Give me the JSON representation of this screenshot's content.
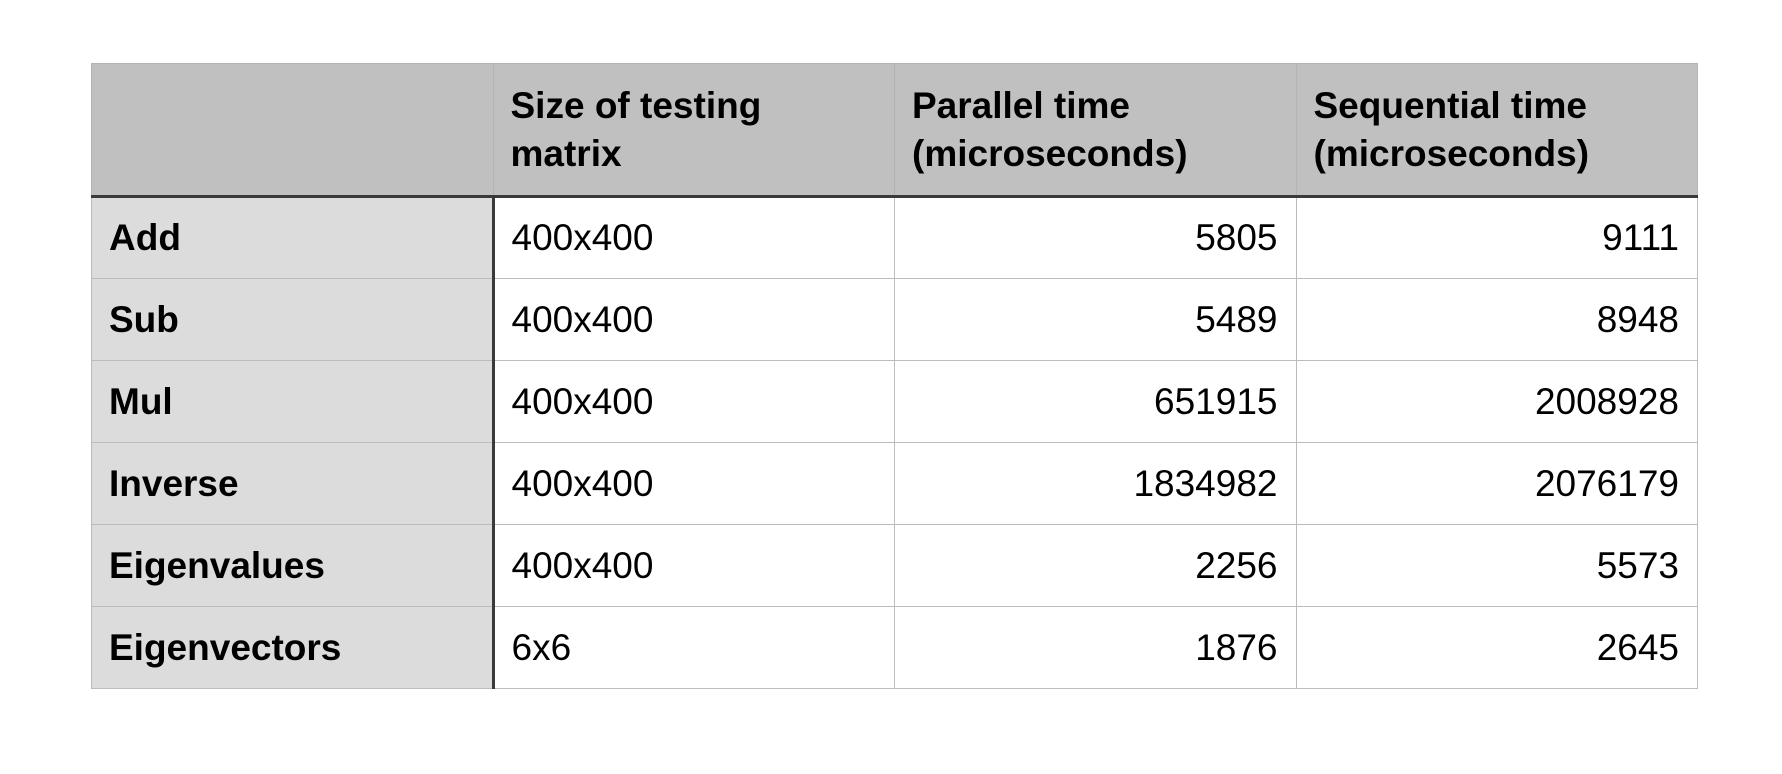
{
  "table": {
    "headers": [
      "",
      "Size of testing\nmatrix",
      "Parallel time\n(microseconds)",
      "Sequential time\n(microseconds)"
    ],
    "rows": [
      {
        "operation": "Add",
        "size": "400x400",
        "parallel": "5805",
        "sequential": "9111"
      },
      {
        "operation": "Sub",
        "size": "400x400",
        "parallel": "5489",
        "sequential": "8948"
      },
      {
        "operation": "Mul",
        "size": "400x400",
        "parallel": "651915",
        "sequential": "2008928"
      },
      {
        "operation": "Inverse",
        "size": "400x400",
        "parallel": "1834982",
        "sequential": "2076179"
      },
      {
        "operation": "Eigenvalues",
        "size": "400x400",
        "parallel": "2256",
        "sequential": "5573"
      },
      {
        "operation": "Eigenvectors",
        "size": "6x6",
        "parallel": "1876",
        "sequential": "2645"
      }
    ]
  }
}
